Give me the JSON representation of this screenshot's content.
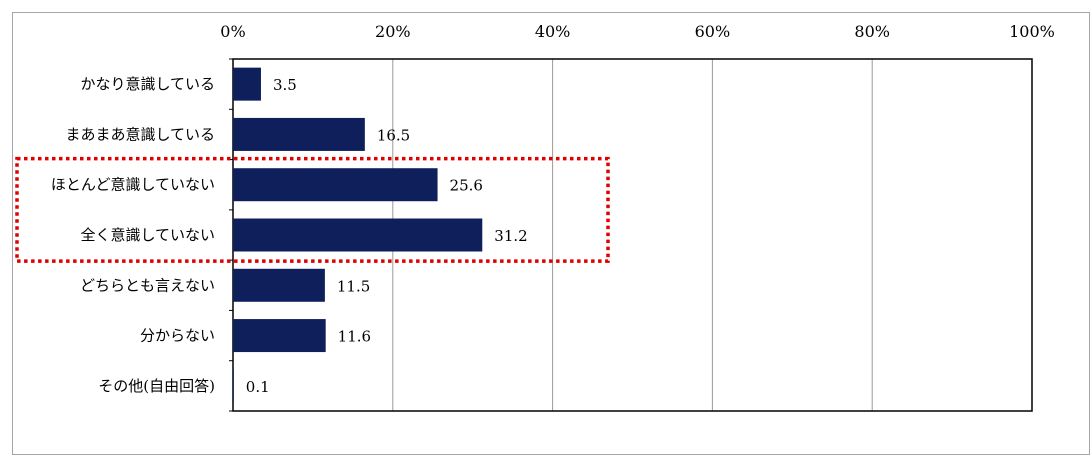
{
  "chart_data": {
    "type": "bar",
    "orientation": "horizontal",
    "categories": [
      "かなり意識している",
      "まあまあ意識している",
      "ほとんど意識していない",
      "全く意識していない",
      "どちらとも言えない",
      "分からない",
      "その他(自由回答)"
    ],
    "values": [
      3.5,
      16.5,
      25.6,
      31.2,
      11.5,
      11.6,
      0.1
    ],
    "data_labels": [
      "3.5",
      "16.5",
      "25.6",
      "31.2",
      "11.5",
      "11.6",
      "0.1"
    ],
    "x_tick_labels": [
      "0%",
      "20%",
      "40%",
      "60%",
      "80%",
      "100%"
    ],
    "xlim": [
      0,
      100
    ],
    "x_axis_position": "top",
    "grid": "vertical",
    "bar_color": "#0f1f5c",
    "highlight": {
      "categories": [
        "ほとんど意識していない",
        "全く意識していない"
      ],
      "color": "#e00000",
      "style": "dotted"
    }
  }
}
